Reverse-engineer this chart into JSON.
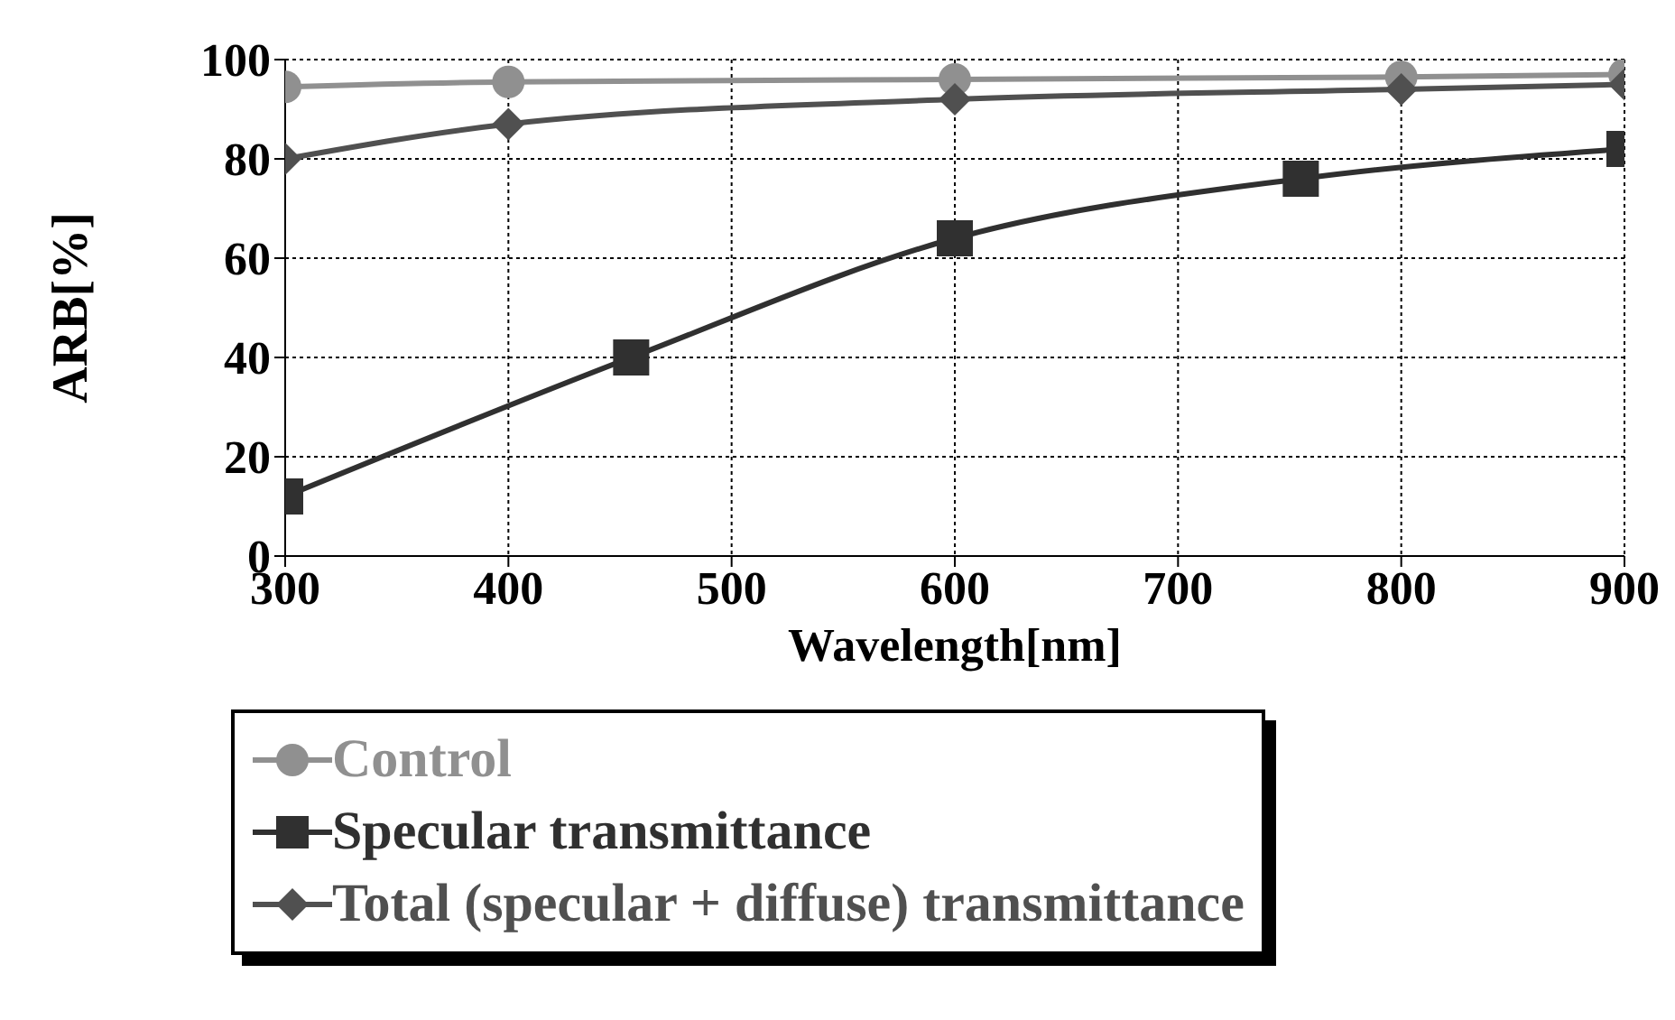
{
  "chart_data": {
    "type": "line",
    "xlabel": "Wavelength[nm]",
    "ylabel": "ARB[%]",
    "xlim": [
      300,
      900
    ],
    "ylim": [
      0,
      100
    ],
    "xticks": [
      300,
      400,
      500,
      600,
      700,
      800,
      900
    ],
    "yticks": [
      0,
      20,
      40,
      60,
      80,
      100
    ],
    "grid": true,
    "legend": "bottom",
    "series": [
      {
        "name": "Control",
        "color": "#909090",
        "marker": "circle",
        "x": [
          300,
          400,
          600,
          800,
          900
        ],
        "values": [
          94.5,
          95.5,
          96,
          96.5,
          97
        ]
      },
      {
        "name": "Specular transmittance",
        "color": "#303030",
        "marker": "square",
        "x": [
          300,
          455,
          600,
          755,
          900
        ],
        "values": [
          12,
          40,
          64,
          76,
          82
        ]
      },
      {
        "name": "Total (specular + diffuse) transmittance",
        "color": "#505050",
        "marker": "diamond",
        "x": [
          300,
          400,
          600,
          800,
          900
        ],
        "values": [
          80,
          87,
          92,
          94,
          95
        ]
      }
    ]
  }
}
